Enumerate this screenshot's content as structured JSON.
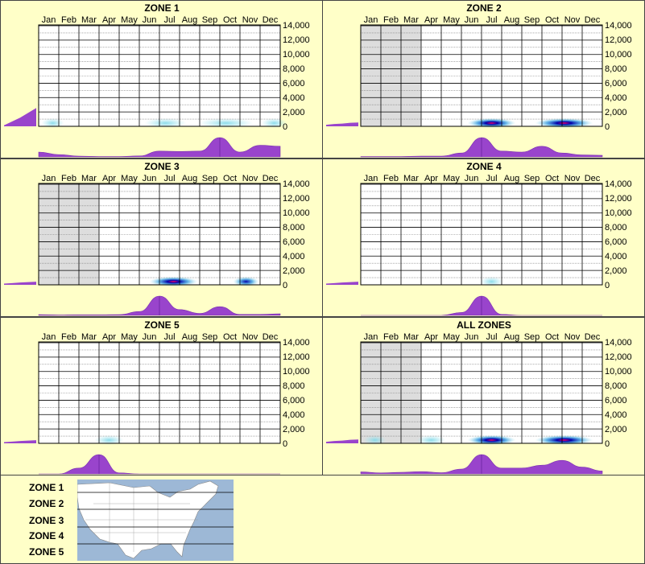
{
  "colors": {
    "background": "#ffffc8",
    "purple": "#9944cc",
    "gridline": "#000000",
    "minorgrid": "#777777",
    "shade": "#dddddd",
    "heat_low": "#a8e8f0",
    "heat_mid": "#0000aa",
    "heat_high": "#ff0066"
  },
  "months": [
    "Jan",
    "Feb",
    "Mar",
    "Apr",
    "May",
    "Jun",
    "Jul",
    "Aug",
    "Sep",
    "Oct",
    "Nov",
    "Dec"
  ],
  "yticks": [
    "14,000",
    "12,000",
    "10,000",
    "8,000",
    "6,000",
    "4,000",
    "2,000",
    "0"
  ],
  "chart_data": [
    {
      "type": "heatmap",
      "title": "ZONE 1",
      "ylim": [
        0,
        14000
      ],
      "categories": [
        "Jan",
        "Feb",
        "Mar",
        "Apr",
        "May",
        "Jun",
        "Jul",
        "Aug",
        "Sep",
        "Oct",
        "Nov",
        "Dec"
      ],
      "shaded_months": [],
      "hot_spots": [
        {
          "x": 0.7,
          "y": 120,
          "w": 14,
          "i": 0.35
        },
        {
          "x": 6.3,
          "y": 150,
          "w": 26,
          "i": 0.2
        },
        {
          "x": 9.3,
          "y": 200,
          "w": 34,
          "i": 0.45
        },
        {
          "x": 11.7,
          "y": 150,
          "w": 16,
          "i": 0.3
        }
      ],
      "seasonal": [
        0.25,
        0.12,
        0.04,
        0.02,
        0.02,
        0.05,
        0.3,
        0.28,
        0.3,
        1.0,
        0.25,
        0.6,
        0.55
      ],
      "elevation_profile": [
        0.05,
        0.25,
        0.45,
        0.7,
        0.95
      ]
    },
    {
      "type": "heatmap",
      "title": "ZONE 2",
      "ylim": [
        0,
        14000
      ],
      "categories": [
        "Jan",
        "Feb",
        "Mar",
        "Apr",
        "May",
        "Jun",
        "Jul",
        "Aug",
        "Sep",
        "Oct",
        "Nov",
        "Dec"
      ],
      "shaded_months": [
        "Jan",
        "Feb",
        "Mar"
      ],
      "hot_spots": [
        {
          "x": 6.5,
          "y": 200,
          "w": 30,
          "i": 0.95
        },
        {
          "x": 10.1,
          "y": 200,
          "w": 36,
          "i": 0.75
        }
      ],
      "seasonal": [
        0.02,
        0.02,
        0.02,
        0.04,
        0.04,
        0.2,
        1.0,
        0.3,
        0.25,
        0.55,
        0.2,
        0.1,
        0.08
      ],
      "elevation_profile": [
        0.08,
        0.12,
        0.14,
        0.18,
        0.2
      ]
    },
    {
      "type": "heatmap",
      "title": "ZONE 3",
      "ylim": [
        0,
        14000
      ],
      "categories": [
        "Jan",
        "Feb",
        "Mar",
        "Apr",
        "May",
        "Jun",
        "Jul",
        "Aug",
        "Sep",
        "Oct",
        "Nov",
        "Dec"
      ],
      "shaded_months": [
        "Jan",
        "Feb",
        "Mar"
      ],
      "hot_spots": [
        {
          "x": 6.7,
          "y": 200,
          "w": 30,
          "i": 0.8
        },
        {
          "x": 10.3,
          "y": 200,
          "w": 16,
          "i": 0.6
        }
      ],
      "seasonal": [
        0.04,
        0.02,
        0.03,
        0.03,
        0.04,
        0.2,
        1.0,
        0.3,
        0.1,
        0.45,
        0.05,
        0.05,
        0.08
      ],
      "elevation_profile": [
        0.06,
        0.09,
        0.12,
        0.14,
        0.16
      ]
    },
    {
      "type": "heatmap",
      "title": "ZONE 4",
      "ylim": [
        0,
        14000
      ],
      "categories": [
        "Jan",
        "Feb",
        "Mar",
        "Apr",
        "May",
        "Jun",
        "Jul",
        "Aug",
        "Sep",
        "Oct",
        "Nov",
        "Dec"
      ],
      "shaded_months": [],
      "hot_spots": [
        {
          "x": 6.5,
          "y": 150,
          "w": 14,
          "i": 0.35
        }
      ],
      "seasonal": [
        0,
        0,
        0,
        0,
        0,
        0.15,
        1.0,
        0.05,
        0,
        0,
        0,
        0,
        0
      ],
      "elevation_profile": [
        0.06,
        0.09,
        0.12,
        0.14,
        0.16
      ]
    },
    {
      "type": "heatmap",
      "title": "ZONE 5",
      "ylim": [
        0,
        14000
      ],
      "categories": [
        "Jan",
        "Feb",
        "Mar",
        "Apr",
        "May",
        "Jun",
        "Jul",
        "Aug",
        "Sep",
        "Oct",
        "Nov",
        "Dec"
      ],
      "shaded_months": [],
      "hot_spots": [
        {
          "x": 3.5,
          "y": 150,
          "w": 18,
          "i": 0.35
        }
      ],
      "seasonal": [
        0,
        0,
        0.3,
        1.0,
        0.05,
        0,
        0,
        0,
        0,
        0,
        0,
        0,
        0
      ],
      "elevation_profile": [
        0.06,
        0.09,
        0.12,
        0.14,
        0.16
      ]
    },
    {
      "type": "heatmap",
      "title": "ALL ZONES",
      "ylim": [
        0,
        14000
      ],
      "categories": [
        "Jan",
        "Feb",
        "Mar",
        "Apr",
        "May",
        "Jun",
        "Jul",
        "Aug",
        "Sep",
        "Oct",
        "Nov",
        "Dec"
      ],
      "shaded_months": [
        "Jan",
        "Feb",
        "Mar"
      ],
      "hot_spots": [
        {
          "x": 0.7,
          "y": 120,
          "w": 14,
          "i": 0.3
        },
        {
          "x": 6.5,
          "y": 200,
          "w": 30,
          "i": 0.95
        },
        {
          "x": 10.1,
          "y": 200,
          "w": 36,
          "i": 0.75
        },
        {
          "x": 3.5,
          "y": 150,
          "w": 18,
          "i": 0.25
        }
      ],
      "seasonal": [
        0.1,
        0.05,
        0.08,
        0.12,
        0.06,
        0.25,
        1.0,
        0.3,
        0.3,
        0.45,
        0.7,
        0.35,
        0.15
      ],
      "elevation_profile": [
        0.08,
        0.12,
        0.14,
        0.18,
        0.2
      ]
    }
  ],
  "legend": {
    "zones": [
      "ZONE 1",
      "ZONE 2",
      "ZONE 3",
      "ZONE 4",
      "ZONE 5"
    ]
  }
}
